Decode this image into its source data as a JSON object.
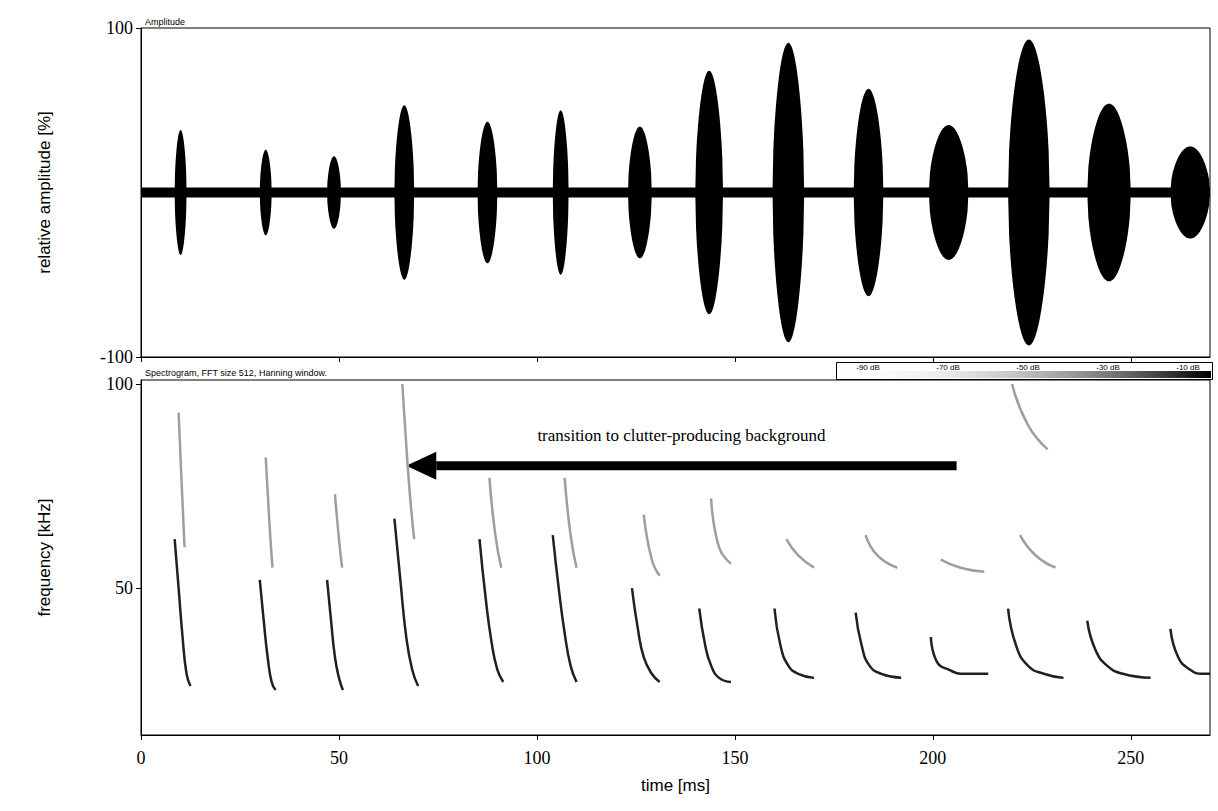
{
  "chart_data": [
    {
      "type": "waveform",
      "title": "Amplitude",
      "ylabel": "relative amplitude [%]",
      "xlim": [
        0,
        270
      ],
      "xticks": [
        0,
        50,
        100,
        150,
        200,
        250
      ],
      "ylim": [
        -100,
        100
      ],
      "yticks": [
        -100,
        100
      ],
      "tick_labels": "y",
      "grid": false,
      "color": "#000000",
      "noise_level": 3,
      "pulses": [
        {
          "start": 8.5,
          "end": 11.5,
          "amplitude": 38
        },
        {
          "start": 30,
          "end": 33,
          "amplitude": 26
        },
        {
          "start": 47,
          "end": 50.5,
          "amplitude": 22
        },
        {
          "start": 64,
          "end": 69,
          "amplitude": 53
        },
        {
          "start": 85,
          "end": 90,
          "amplitude": 43
        },
        {
          "start": 104,
          "end": 108,
          "amplitude": 50
        },
        {
          "start": 123,
          "end": 129,
          "amplitude": 40
        },
        {
          "start": 140,
          "end": 147,
          "amplitude": 74
        },
        {
          "start": 159.5,
          "end": 167.5,
          "amplitude": 91
        },
        {
          "start": 180,
          "end": 187.5,
          "amplitude": 63
        },
        {
          "start": 199,
          "end": 209,
          "amplitude": 41
        },
        {
          "start": 219,
          "end": 229.5,
          "amplitude": 93
        },
        {
          "start": 239,
          "end": 250,
          "amplitude": 54
        },
        {
          "start": 260,
          "end": 270,
          "amplitude": 28
        }
      ]
    },
    {
      "type": "spectrogram",
      "title": "Spectrogram, FFT size 512, Hanning window.",
      "xlabel": "time [ms]",
      "ylabel": "frequency [kHz]",
      "xlim": [
        0,
        270
      ],
      "xticks": [
        0,
        50,
        100,
        150,
        200,
        250
      ],
      "ylim": [
        14,
        101
      ],
      "yticks": [
        50,
        100
      ],
      "grid": false,
      "color_bar": {
        "range": [
          -98,
          -4
        ],
        "ticks": [
          {
            "value": -90,
            "label": "-90 dB"
          },
          {
            "value": -70,
            "label": "-70 dB"
          },
          {
            "value": -50,
            "label": "-50 dB"
          },
          {
            "value": -30,
            "label": "-30 dB"
          },
          {
            "value": -10,
            "label": "-10 dB"
          }
        ]
      },
      "annotation": {
        "text": "transition to clutter-producing background",
        "x_from": 206,
        "x_to": 67,
        "y": 80
      },
      "sweeps": [
        {
          "level": -10,
          "points": [
            [
              8.5,
              62
            ],
            [
              9.5,
              50
            ],
            [
              10.5,
              38
            ],
            [
              11.5,
              29
            ],
            [
              12.5,
              26
            ]
          ]
        },
        {
          "level": -40,
          "points": [
            [
              9.5,
              93
            ],
            [
              10.3,
              75
            ],
            [
              11,
              60
            ]
          ]
        },
        {
          "level": -10,
          "points": [
            [
              30,
              52
            ],
            [
              31,
              42
            ],
            [
              32,
              33
            ],
            [
              33,
              27
            ],
            [
              34,
              25
            ]
          ]
        },
        {
          "level": -40,
          "points": [
            [
              31.5,
              82
            ],
            [
              32.5,
              65
            ],
            [
              33.2,
              55
            ]
          ]
        },
        {
          "level": -10,
          "points": [
            [
              47,
              52
            ],
            [
              48,
              42
            ],
            [
              49,
              33
            ],
            [
              50,
              28
            ],
            [
              51,
              25
            ]
          ]
        },
        {
          "level": -40,
          "points": [
            [
              49,
              73
            ],
            [
              50,
              62
            ],
            [
              50.8,
              55
            ]
          ]
        },
        {
          "level": -10,
          "points": [
            [
              64,
              67
            ],
            [
              65.5,
              52
            ],
            [
              67,
              38
            ],
            [
              68.5,
              30
            ],
            [
              70,
              26
            ]
          ]
        },
        {
          "level": -40,
          "points": [
            [
              66,
              100
            ],
            [
              67,
              85
            ],
            [
              68,
              72
            ],
            [
              69,
              62
            ]
          ]
        },
        {
          "level": -10,
          "points": [
            [
              85.5,
              62
            ],
            [
              87,
              48
            ],
            [
              88.5,
              37
            ],
            [
              90,
              30
            ],
            [
              91.5,
              27
            ]
          ]
        },
        {
          "level": -40,
          "points": [
            [
              88,
              77
            ],
            [
              89.5,
              63
            ],
            [
              91,
              55
            ]
          ]
        },
        {
          "level": -10,
          "points": [
            [
              104,
              63
            ],
            [
              105.5,
              50
            ],
            [
              107,
              39
            ],
            [
              108.5,
              31
            ],
            [
              110,
              27
            ]
          ]
        },
        {
          "level": -40,
          "points": [
            [
              107,
              77
            ],
            [
              108.5,
              63
            ],
            [
              110,
              55
            ]
          ]
        },
        {
          "level": -10,
          "points": [
            [
              124,
              50
            ],
            [
              125.5,
              40
            ],
            [
              127,
              33
            ],
            [
              129,
              29
            ],
            [
              131,
              27
            ]
          ]
        },
        {
          "level": -40,
          "points": [
            [
              127,
              68
            ],
            [
              129,
              57
            ],
            [
              131,
              53
            ]
          ]
        },
        {
          "level": -10,
          "points": [
            [
              141,
              45
            ],
            [
              142.5,
              36
            ],
            [
              144,
              31
            ],
            [
              146,
              28
            ],
            [
              149,
              27
            ]
          ]
        },
        {
          "level": -40,
          "points": [
            [
              144,
              72
            ],
            [
              146,
              60
            ],
            [
              149,
              56
            ]
          ]
        },
        {
          "level": -10,
          "points": [
            [
              160,
              45
            ],
            [
              161.5,
              36
            ],
            [
              163.5,
              31
            ],
            [
              166,
              29
            ],
            [
              170,
              28
            ]
          ]
        },
        {
          "level": -40,
          "points": [
            [
              163,
              62
            ],
            [
              166,
              58
            ],
            [
              170,
              55
            ]
          ]
        },
        {
          "level": -10,
          "points": [
            [
              180.5,
              44
            ],
            [
              182,
              36
            ],
            [
              184,
              31
            ],
            [
              187,
              29
            ],
            [
              192,
              28
            ]
          ]
        },
        {
          "level": -40,
          "points": [
            [
              183,
              63
            ],
            [
              186,
              58
            ],
            [
              191,
              55
            ]
          ]
        },
        {
          "level": -10,
          "points": [
            [
              199.5,
              38
            ],
            [
              201,
              32
            ],
            [
              204,
              30
            ],
            [
              208,
              29
            ],
            [
              214,
              29
            ]
          ]
        },
        {
          "level": -40,
          "points": [
            [
              202,
              57
            ],
            [
              207,
              55
            ],
            [
              213,
              54
            ]
          ]
        },
        {
          "level": -10,
          "points": [
            [
              219,
              45
            ],
            [
              221,
              36
            ],
            [
              224,
              31
            ],
            [
              228,
              29
            ],
            [
              233,
              28
            ]
          ]
        },
        {
          "level": -40,
          "points": [
            [
              222,
              63
            ],
            [
              226,
              58
            ],
            [
              231,
              55
            ]
          ]
        },
        {
          "level": -40,
          "points": [
            [
              220,
              100
            ],
            [
              224,
              90
            ],
            [
              229,
              84
            ]
          ]
        },
        {
          "level": -10,
          "points": [
            [
              239,
              42
            ],
            [
              241,
              35
            ],
            [
              244,
              31
            ],
            [
              248,
              29
            ],
            [
              255,
              28
            ]
          ]
        },
        {
          "level": -10,
          "points": [
            [
              260,
              40
            ],
            [
              262,
              33
            ],
            [
              265,
              30
            ],
            [
              268,
              29
            ],
            [
              270,
              29
            ]
          ]
        }
      ]
    }
  ]
}
